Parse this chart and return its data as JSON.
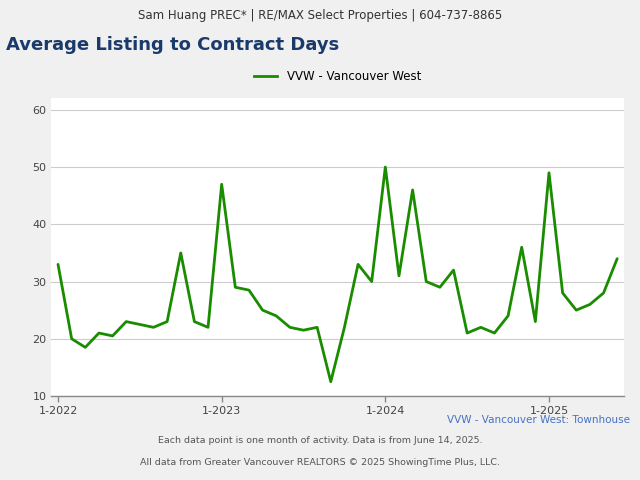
{
  "header": "Sam Huang PREC* | RE/MAX Select Properties | 604-737-8865",
  "title": "Average Listing to Contract Days",
  "legend_label": "VVW - Vancouver West",
  "subtitle_right": "VVW - Vancouver West: Townhouse",
  "footer1": "Each data point is one month of activity. Data is from June 14, 2025.",
  "footer2": "All data from Greater Vancouver REALTORS © 2025 ShowingTime Plus, LLC.",
  "line_color": "#1a8c00",
  "background_color": "#f0f0f0",
  "plot_bg_color": "#ffffff",
  "header_bg": "#e0e0e0",
  "ylim": [
    10,
    62
  ],
  "yticks": [
    10,
    20,
    30,
    40,
    50,
    60
  ],
  "xtick_labels": [
    "1-2022",
    "1-2023",
    "1-2024",
    "1-2025"
  ],
  "data_x": [
    0,
    1,
    2,
    3,
    4,
    5,
    6,
    7,
    8,
    9,
    10,
    11,
    12,
    13,
    14,
    15,
    16,
    17,
    18,
    19,
    20,
    21,
    22,
    23,
    24,
    25,
    26,
    27,
    28,
    29,
    30,
    31,
    32,
    33,
    34,
    35,
    36,
    37,
    38,
    39,
    40,
    41
  ],
  "data_y": [
    33,
    20,
    18.5,
    21,
    20.5,
    23,
    22.5,
    22,
    23,
    35,
    23,
    22,
    47,
    29,
    28.5,
    25,
    24,
    22,
    21.5,
    22,
    12.5,
    22,
    33,
    30,
    50,
    31,
    46,
    30,
    29,
    32,
    21,
    22,
    21,
    24,
    36,
    23,
    49,
    28,
    25,
    26,
    28,
    34
  ],
  "xtick_positions": [
    0,
    12,
    24,
    36
  ],
  "line_width": 2.0,
  "title_color": "#1a3a6b",
  "footer_color": "#555555",
  "subtitle_right_color": "#4472c4"
}
